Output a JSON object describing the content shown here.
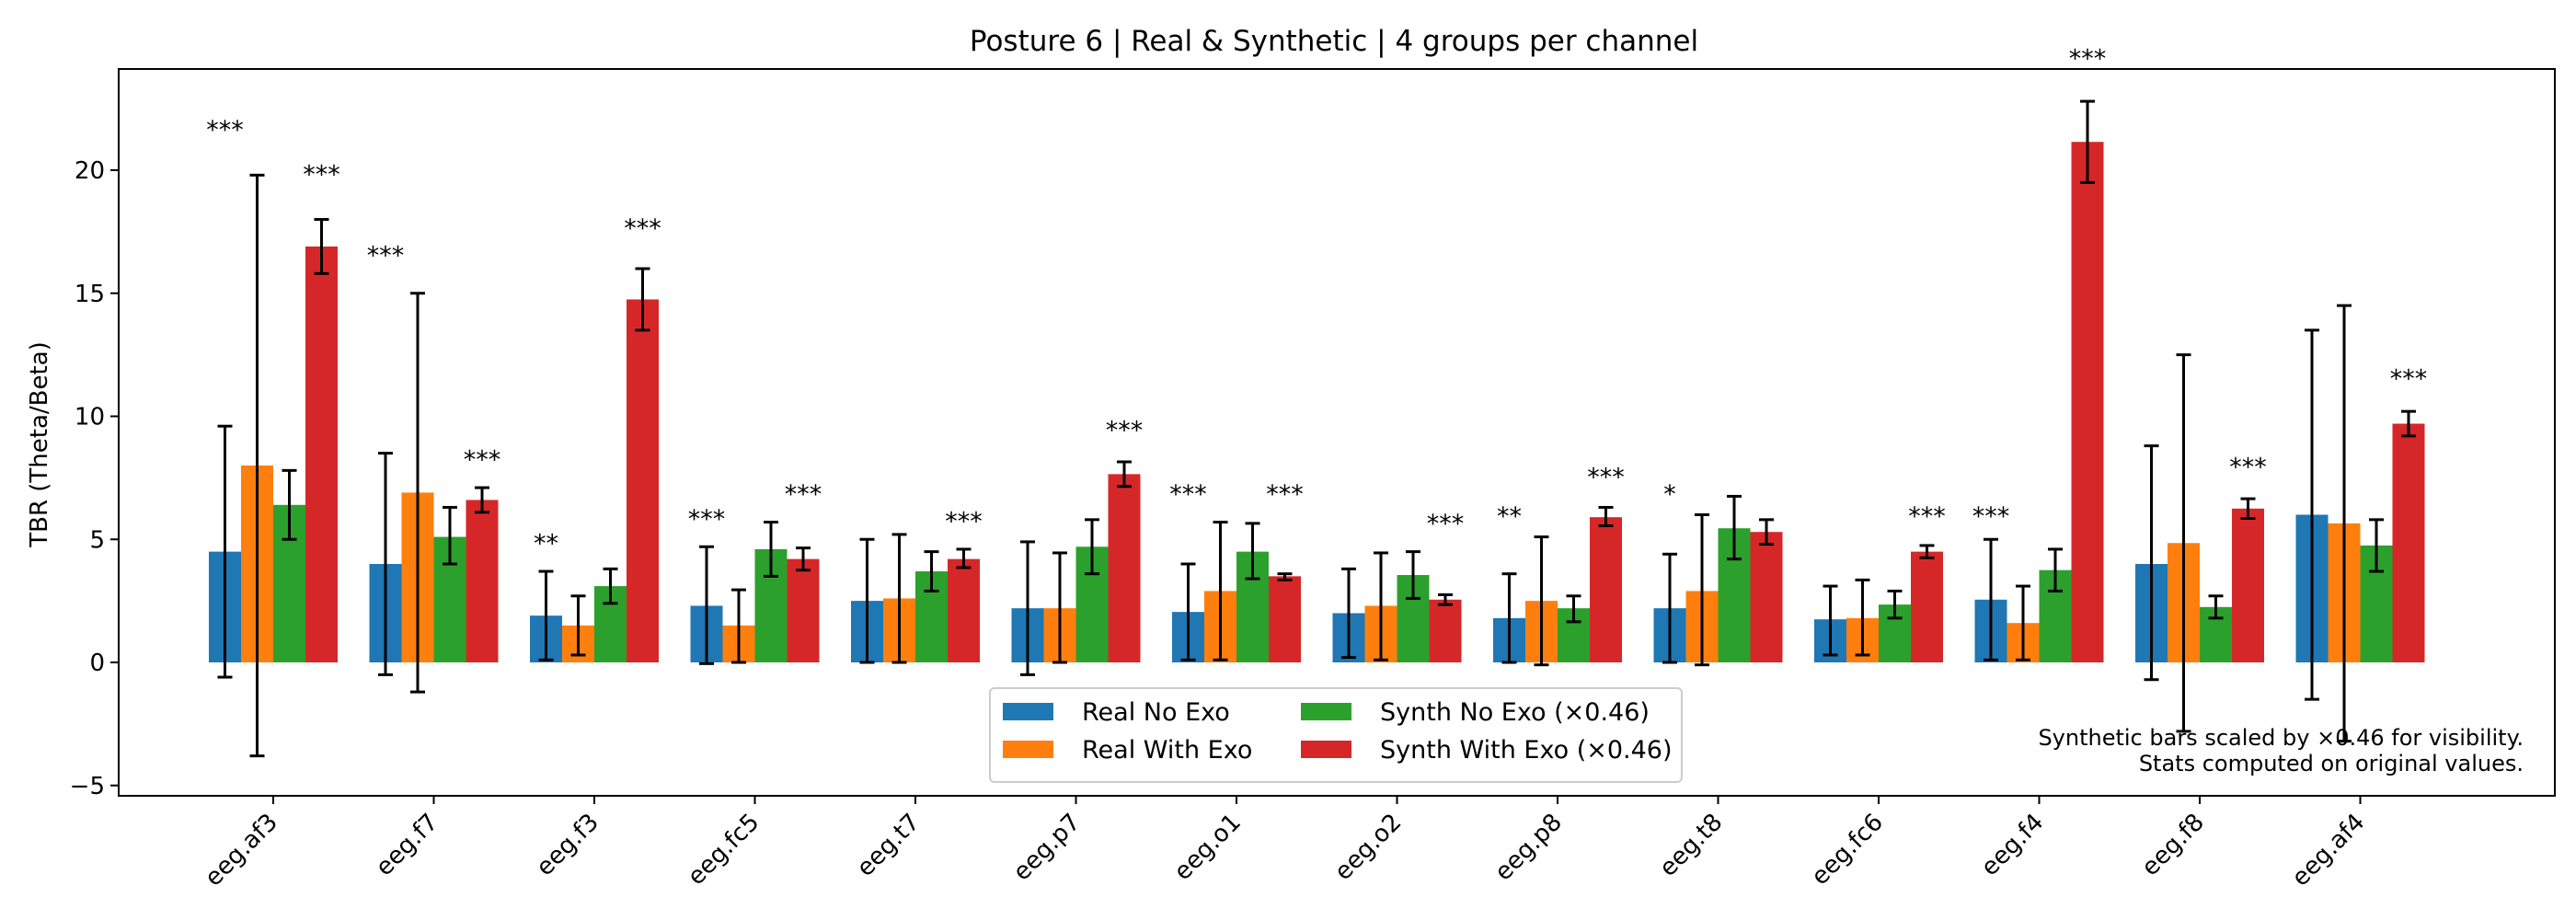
{
  "chart_data": {
    "type": "bar",
    "title": "Posture 6 | Real & Synthetic | 4 groups per channel",
    "xlabel": "",
    "ylabel": "TBR (Theta/Beta)",
    "ylim": [
      -5.2,
      24.2
    ],
    "yticks": [
      -5,
      0,
      5,
      10,
      15,
      20
    ],
    "grid": false,
    "legend_position": "bottom-center",
    "categories": [
      "eeg.af3",
      "eeg.f7",
      "eeg.f3",
      "eeg.fc5",
      "eeg.t7",
      "eeg.p7",
      "eeg.o1",
      "eeg.o2",
      "eeg.p8",
      "eeg.t8",
      "eeg.fc6",
      "eeg.f4",
      "eeg.f8",
      "eeg.af4"
    ],
    "series": [
      {
        "name": "Real No Exo",
        "color": "#1f77b4",
        "values": [
          4.5,
          4.0,
          1.9,
          2.3,
          2.5,
          2.2,
          2.05,
          2.0,
          1.8,
          2.2,
          1.75,
          2.55,
          4.0,
          6.0
        ],
        "error": [
          [
            -0.6,
            9.6
          ],
          [
            -0.5,
            8.5
          ],
          [
            0.1,
            3.7
          ],
          [
            -0.05,
            4.7
          ],
          [
            0.0,
            5.0
          ],
          [
            -0.5,
            4.9
          ],
          [
            0.1,
            4.0
          ],
          [
            0.2,
            3.8
          ],
          [
            0.0,
            3.6
          ],
          [
            0.0,
            4.4
          ],
          [
            0.3,
            3.1
          ],
          [
            0.1,
            5.0
          ],
          [
            -0.7,
            8.8
          ],
          [
            -1.5,
            13.5
          ]
        ]
      },
      {
        "name": "Real With Exo",
        "color": "#ff7f0e",
        "values": [
          8.0,
          6.9,
          1.5,
          1.5,
          2.6,
          2.2,
          2.9,
          2.3,
          2.5,
          2.9,
          1.8,
          1.6,
          4.85,
          5.65
        ],
        "error": [
          [
            -3.8,
            19.8
          ],
          [
            -1.2,
            15.0
          ],
          [
            0.3,
            2.7
          ],
          [
            0.0,
            2.95
          ],
          [
            0.0,
            5.2
          ],
          [
            0.0,
            4.45
          ],
          [
            0.1,
            5.7
          ],
          [
            0.1,
            4.45
          ],
          [
            -0.1,
            5.1
          ],
          [
            -0.1,
            6.0
          ],
          [
            0.3,
            3.35
          ],
          [
            0.1,
            3.1
          ],
          [
            -2.8,
            12.5
          ],
          [
            -3.2,
            14.5
          ]
        ]
      },
      {
        "name": "Synth No Exo (×0.46)",
        "color": "#2ca02c",
        "values": [
          6.4,
          5.1,
          3.1,
          4.6,
          3.7,
          4.7,
          4.5,
          3.55,
          2.2,
          5.45,
          2.35,
          3.75,
          2.25,
          4.75
        ],
        "error": [
          [
            5.0,
            7.8
          ],
          [
            4.0,
            6.3
          ],
          [
            2.4,
            3.8
          ],
          [
            3.5,
            5.7
          ],
          [
            2.9,
            4.5
          ],
          [
            3.6,
            5.8
          ],
          [
            3.4,
            5.65
          ],
          [
            2.6,
            4.5
          ],
          [
            1.65,
            2.7
          ],
          [
            4.2,
            6.75
          ],
          [
            1.8,
            2.9
          ],
          [
            2.9,
            4.6
          ],
          [
            1.8,
            2.7
          ],
          [
            3.7,
            5.8
          ]
        ]
      },
      {
        "name": "Synth With Exo (×0.46)",
        "color": "#d62728",
        "values": [
          16.9,
          6.6,
          14.75,
          4.2,
          4.2,
          7.65,
          3.5,
          2.55,
          5.9,
          5.3,
          4.5,
          21.15,
          6.25,
          9.7
        ],
        "error": [
          [
            15.8,
            18.0
          ],
          [
            6.1,
            7.1
          ],
          [
            13.5,
            16.0
          ],
          [
            3.75,
            4.65
          ],
          [
            3.85,
            4.6
          ],
          [
            7.15,
            8.15
          ],
          [
            3.35,
            3.6
          ],
          [
            2.35,
            2.75
          ],
          [
            5.55,
            6.3
          ],
          [
            4.8,
            5.8
          ],
          [
            4.25,
            4.75
          ],
          [
            19.5,
            22.8
          ],
          [
            5.85,
            6.65
          ],
          [
            9.2,
            10.2
          ]
        ]
      }
    ],
    "annotations": [
      {
        "channel": 0,
        "series": 0,
        "text": "***",
        "y": 21.3
      },
      {
        "channel": 0,
        "series": 3,
        "text": "***",
        "y": 19.5
      },
      {
        "channel": 1,
        "series": 0,
        "text": "***",
        "y": 16.2
      },
      {
        "channel": 1,
        "series": 3,
        "text": "***",
        "y": 7.9
      },
      {
        "channel": 2,
        "series": 0,
        "text": "**",
        "y": 4.5
      },
      {
        "channel": 2,
        "series": 3,
        "text": "***",
        "y": 17.3
      },
      {
        "channel": 3,
        "series": 0,
        "text": "***",
        "y": 5.5
      },
      {
        "channel": 3,
        "series": 3,
        "text": "***",
        "y": 6.5
      },
      {
        "channel": 4,
        "series": 3,
        "text": "***",
        "y": 5.4
      },
      {
        "channel": 5,
        "series": 3,
        "text": "***",
        "y": 9.1
      },
      {
        "channel": 6,
        "series": 0,
        "text": "***",
        "y": 6.5
      },
      {
        "channel": 6,
        "series": 3,
        "text": "***",
        "y": 6.5
      },
      {
        "channel": 7,
        "series": 3,
        "text": "***",
        "y": 5.3
      },
      {
        "channel": 8,
        "series": 0,
        "text": "**",
        "y": 5.6
      },
      {
        "channel": 8,
        "series": 3,
        "text": "***",
        "y": 7.2
      },
      {
        "channel": 9,
        "series": 0,
        "text": "*",
        "y": 6.5
      },
      {
        "channel": 10,
        "series": 3,
        "text": "***",
        "y": 5.6
      },
      {
        "channel": 11,
        "series": 0,
        "text": "***",
        "y": 5.6
      },
      {
        "channel": 11,
        "series": 3,
        "text": "***",
        "y": 24.2
      },
      {
        "channel": 12,
        "series": 3,
        "text": "***",
        "y": 7.6
      },
      {
        "channel": 13,
        "series": 3,
        "text": "***",
        "y": 11.2
      }
    ],
    "note_lines": [
      "Synthetic bars scaled by ×0.46 for visibility.",
      "Stats computed on original values."
    ]
  }
}
